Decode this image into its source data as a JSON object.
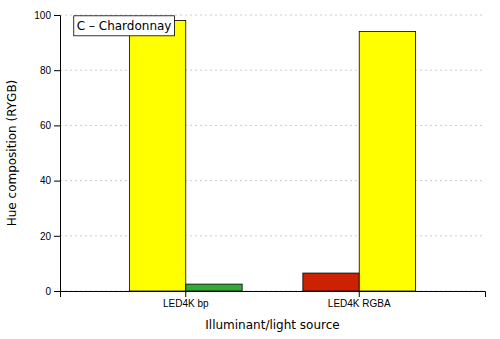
{
  "chart_data": {
    "type": "bar",
    "categories": [
      "LED4K bp",
      "LED4K RGBA"
    ],
    "series": [
      {
        "colors": [
          "#ffff00",
          "#cc2200"
        ],
        "values": [
          98,
          6.5
        ]
      },
      {
        "colors": [
          "#33aa33",
          "#ffff00"
        ],
        "values": [
          2.5,
          94
        ]
      }
    ],
    "xlabel": "Illuminant/light source",
    "ylabel": "Hue composition (RYGB)",
    "annotation": "C – Chardonnay",
    "ylim": [
      0,
      100
    ],
    "yticks": [
      0,
      20,
      40,
      60,
      80,
      100
    ],
    "grid": true
  }
}
